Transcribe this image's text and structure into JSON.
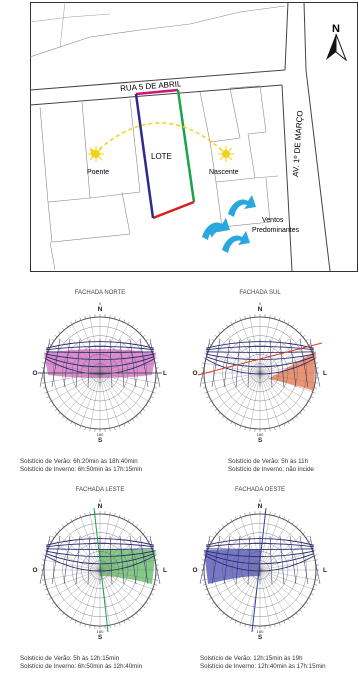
{
  "site_plan": {
    "street_top": "RUA 5 DE ABRIL",
    "street_right": "AV. 1º DE MARÇO",
    "lot_label": "LOTE",
    "west_label": "Poente",
    "east_label": "Nascente",
    "wind_label_1": "Ventos",
    "wind_label_2": "Predominantes",
    "north_letter": "N",
    "colors": {
      "north_edge": "#d0157a",
      "east_edge": "#1aa34a",
      "south_edge": "#d62020",
      "west_edge": "#2a2a8f",
      "sun": "#f2d21a",
      "wind": "#29a8e0"
    }
  },
  "diagrams": [
    {
      "title": "FACHADA NORTE",
      "line1": "Solstício de Verão: 6h:20min às 18h:40min",
      "line2": "Solstício de Inverno: 6h:50min às 17h:15min",
      "fill_color": "#d77ac4",
      "shade": "north"
    },
    {
      "title": "FACHADA SUL",
      "line1": "Solstício de Verão: 5h às 11h",
      "line2": "Solstício de Inverno: não incide",
      "fill_color": "#e8815a",
      "shade": "south"
    },
    {
      "title": "FACHADA LESTE",
      "line1": "Solstício de Verão: 5h às 12h:15min",
      "line2": "Solstício de Inverno: 6h:50min às 12h:40min",
      "fill_color": "#6fbf6f",
      "shade": "east"
    },
    {
      "title": "FACHADA OESTE",
      "line1": "Solstício de Verão: 12h:15min às 19h",
      "line2": "Solstício de Inverno: 12h:40min às 17h:15min",
      "fill_color": "#5d5fbf",
      "shade": "west"
    }
  ],
  "compass": {
    "n": "N",
    "s": "S",
    "o": "O",
    "l": "L",
    "n_deg": "0",
    "s_deg": "180"
  }
}
